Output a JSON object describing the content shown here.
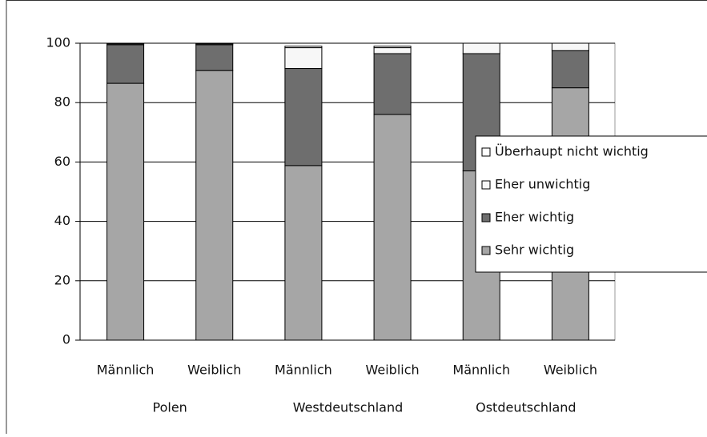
{
  "chart_data": {
    "type": "stacked_bar",
    "categories": [
      "Männlich",
      "Weiblich",
      "Männlich",
      "Weiblich",
      "Männlich",
      "Weiblich"
    ],
    "groups": [
      "Polen",
      "Westdeutschland",
      "Ostdeutschland"
    ],
    "series": [
      {
        "name": "Sehr wichtig",
        "color": "#a6a6a6",
        "values": [
          86.5,
          90.8,
          58.8,
          76,
          57,
          85
        ]
      },
      {
        "name": "Eher wichtig",
        "color": "#6e6e6e",
        "values": [
          13,
          8.7,
          32.7,
          20.5,
          39.5,
          12.5
        ]
      },
      {
        "name": "Eher unwichtig",
        "color": "#f7f7f7",
        "values": [
          0.3,
          0.3,
          7,
          2,
          3.5,
          2.5
        ]
      },
      {
        "name": "Überhaupt nicht wichtig",
        "color": "#ffffff",
        "values": [
          0.2,
          0.2,
          0.5,
          0.5,
          0,
          0
        ]
      }
    ],
    "ylim": [
      0,
      100
    ],
    "yticks": [
      0,
      20,
      40,
      60,
      80,
      100
    ],
    "grid": true,
    "legend": "right"
  }
}
